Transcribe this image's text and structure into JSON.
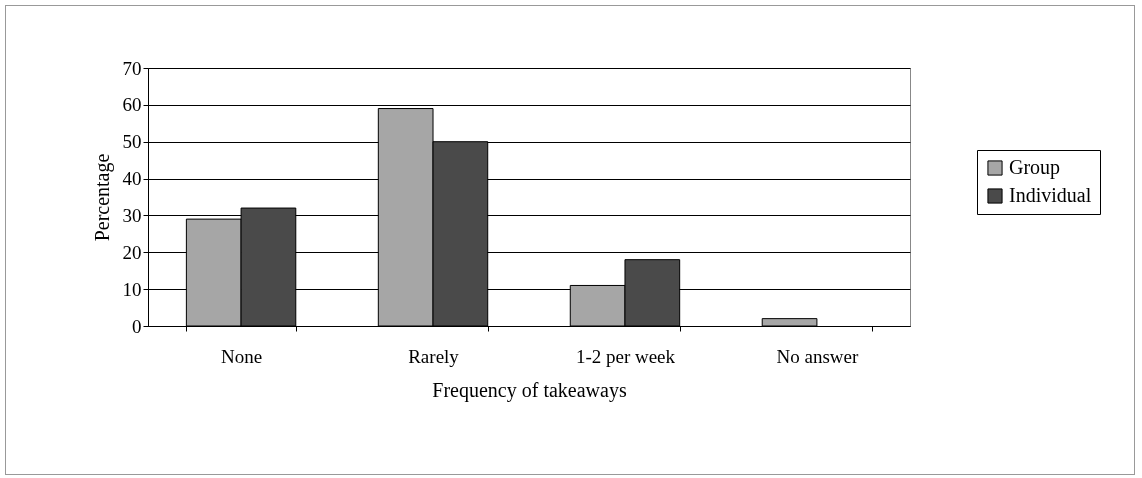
{
  "chart_data": {
    "type": "bar",
    "xlabel": "Frequency of takeaways",
    "ylabel": "Percentage",
    "categories": [
      "None",
      "Rarely",
      "1-2 per week",
      "No answer"
    ],
    "series": [
      {
        "name": "Group",
        "color": "#a6a6a6",
        "values": [
          29,
          59,
          11,
          2
        ]
      },
      {
        "name": "Individual",
        "color": "#4a4a4a",
        "values": [
          32,
          50,
          18,
          null
        ]
      }
    ],
    "ylim": [
      0,
      70
    ],
    "yticks": [
      0,
      10,
      20,
      30,
      40,
      50,
      60,
      70
    ],
    "grid": "y",
    "legend": "right"
  }
}
